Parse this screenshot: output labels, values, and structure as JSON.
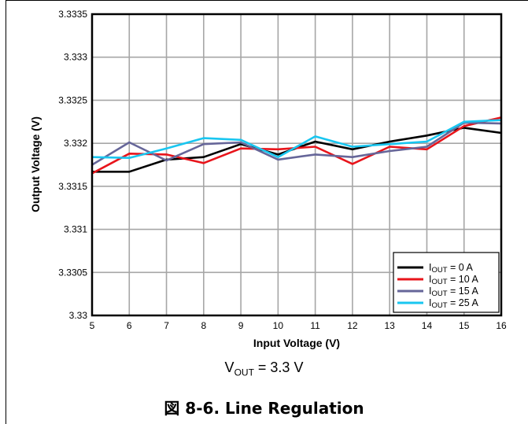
{
  "chart_data": {
    "type": "line",
    "title": "",
    "xlabel": "Input Voltage (V)",
    "ylabel": "Output Voltage (V)",
    "xlim": [
      5,
      16
    ],
    "ylim": [
      3.33,
      3.3335
    ],
    "x_ticks": [
      "5",
      "6",
      "7",
      "8",
      "9",
      "10",
      "11",
      "12",
      "13",
      "14",
      "15",
      "16"
    ],
    "y_ticks": [
      "3.33",
      "3.3305",
      "3.331",
      "3.3315",
      "3.332",
      "3.3325",
      "3.333",
      "3.3335"
    ],
    "grid": true,
    "legend_position": "bottom-right",
    "x": [
      5,
      6,
      7,
      8,
      9,
      10,
      11,
      12,
      13,
      14,
      15,
      16
    ],
    "series": [
      {
        "name_prefix": "I",
        "name_sub": "OUT",
        "name_suffix": " = 0 A",
        "color": "#000000",
        "values": [
          3.33167,
          3.33167,
          3.33181,
          3.33184,
          3.33199,
          3.33187,
          3.33202,
          3.33193,
          3.33202,
          3.33209,
          3.33218,
          3.33212
        ]
      },
      {
        "name_prefix": "I",
        "name_sub": "OUT",
        "name_suffix": " = 10 A",
        "color": "#e8141b",
        "values": [
          3.33165,
          3.33188,
          3.33187,
          3.33177,
          3.33194,
          3.33193,
          3.33196,
          3.33176,
          3.33196,
          3.33193,
          3.3322,
          3.3323
        ]
      },
      {
        "name_prefix": "I",
        "name_sub": "OUT",
        "name_suffix": " = 15 A",
        "color": "#666699",
        "values": [
          3.33175,
          3.33201,
          3.3318,
          3.33199,
          3.33201,
          3.33181,
          3.33187,
          3.33184,
          3.33191,
          3.33196,
          3.33224,
          3.33223
        ]
      },
      {
        "name_prefix": "I",
        "name_sub": "OUT",
        "name_suffix": " = 25 A",
        "color": "#19c6f0",
        "values": [
          3.33184,
          3.33183,
          3.33194,
          3.33206,
          3.33204,
          3.33184,
          3.33208,
          3.33196,
          3.33199,
          3.33202,
          3.33225,
          3.33227
        ]
      }
    ]
  },
  "subtitle": {
    "prefix": "V",
    "sub": "OUT",
    "suffix": " = 3.3 V"
  },
  "caption": "図 8-6. Line Regulation"
}
